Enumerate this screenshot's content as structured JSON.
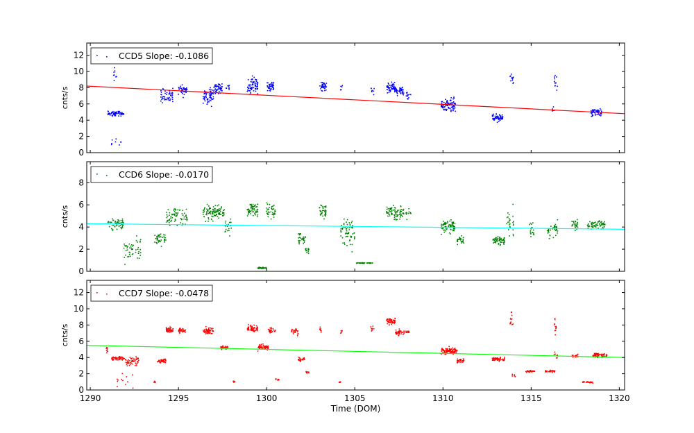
{
  "chart_data": [
    {
      "type": "scatter",
      "panel": "CCD5",
      "legend_label": "CCD5 Slope: -0.1086",
      "legend_position": "upper-left",
      "ylabel": "cnts/s",
      "xlim": [
        1289.8,
        1320.3
      ],
      "ylim": [
        0,
        13.5
      ],
      "yticks": [
        0,
        2,
        4,
        6,
        8,
        10,
        12
      ],
      "point_color": "#0000ff",
      "fit_color": "#ff0000",
      "fit_line": {
        "x": [
          1289.8,
          1320.3
        ],
        "y": [
          8.2,
          4.8
        ]
      },
      "clusters": [
        {
          "x0": 1291.0,
          "x1": 1291.9,
          "y": 4.8,
          "spread": 0.3,
          "n": 60
        },
        {
          "x0": 1291.3,
          "x1": 1291.5,
          "y": 9.5,
          "spread": 0.7,
          "n": 8
        },
        {
          "x0": 1291.2,
          "x1": 1291.8,
          "y": 1.4,
          "spread": 0.6,
          "n": 8
        },
        {
          "x0": 1294.0,
          "x1": 1294.7,
          "y": 7.0,
          "spread": 0.7,
          "n": 50
        },
        {
          "x0": 1295.0,
          "x1": 1295.5,
          "y": 7.7,
          "spread": 0.5,
          "n": 40
        },
        {
          "x0": 1296.4,
          "x1": 1297.0,
          "y": 7.0,
          "spread": 0.9,
          "n": 60
        },
        {
          "x0": 1297.0,
          "x1": 1297.5,
          "y": 7.9,
          "spread": 0.6,
          "n": 50
        },
        {
          "x0": 1297.7,
          "x1": 1297.9,
          "y": 8.0,
          "spread": 0.5,
          "n": 8
        },
        {
          "x0": 1298.9,
          "x1": 1299.5,
          "y": 8.2,
          "spread": 0.9,
          "n": 70
        },
        {
          "x0": 1300.0,
          "x1": 1300.4,
          "y": 8.1,
          "spread": 0.5,
          "n": 40
        },
        {
          "x0": 1303.0,
          "x1": 1303.4,
          "y": 8.2,
          "spread": 0.5,
          "n": 35
        },
        {
          "x0": 1304.2,
          "x1": 1304.3,
          "y": 7.8,
          "spread": 0.6,
          "n": 6
        },
        {
          "x0": 1305.9,
          "x1": 1306.1,
          "y": 7.8,
          "spread": 0.5,
          "n": 8
        },
        {
          "x0": 1306.8,
          "x1": 1307.3,
          "y": 8.0,
          "spread": 0.5,
          "n": 60
        },
        {
          "x0": 1307.3,
          "x1": 1307.8,
          "y": 7.6,
          "spread": 0.5,
          "n": 40
        },
        {
          "x0": 1307.9,
          "x1": 1308.2,
          "y": 7.2,
          "spread": 0.4,
          "n": 12
        },
        {
          "x0": 1309.9,
          "x1": 1310.7,
          "y": 5.9,
          "spread": 0.6,
          "n": 90
        },
        {
          "x0": 1312.8,
          "x1": 1313.4,
          "y": 4.3,
          "spread": 0.4,
          "n": 60
        },
        {
          "x0": 1313.8,
          "x1": 1314.0,
          "y": 9.2,
          "spread": 0.8,
          "n": 12
        },
        {
          "x0": 1316.3,
          "x1": 1316.5,
          "y": 8.8,
          "spread": 0.9,
          "n": 12
        },
        {
          "x0": 1316.2,
          "x1": 1316.4,
          "y": 5.2,
          "spread": 0.4,
          "n": 6
        },
        {
          "x0": 1318.4,
          "x1": 1319.0,
          "y": 5.0,
          "spread": 0.4,
          "n": 60
        }
      ]
    },
    {
      "type": "scatter",
      "panel": "CCD6",
      "legend_label": "CCD6 Slope: -0.0170",
      "legend_position": "upper-left",
      "ylabel": "cnts/s",
      "xlim": [
        1289.8,
        1320.3
      ],
      "ylim": [
        0,
        9.9
      ],
      "yticks": [
        0,
        2,
        4,
        6,
        8
      ],
      "point_color": "#008000",
      "fit_color": "#00ffff",
      "fit_line": {
        "x": [
          1289.8,
          1320.3
        ],
        "y": [
          4.3,
          3.8
        ]
      },
      "clusters": [
        {
          "x0": 1291.0,
          "x1": 1291.9,
          "y": 4.3,
          "spread": 0.4,
          "n": 60
        },
        {
          "x0": 1291.9,
          "x1": 1292.9,
          "y": 2.0,
          "spread": 0.9,
          "n": 50
        },
        {
          "x0": 1293.6,
          "x1": 1294.3,
          "y": 3.0,
          "spread": 0.4,
          "n": 40
        },
        {
          "x0": 1294.3,
          "x1": 1295.5,
          "y": 5.0,
          "spread": 0.7,
          "n": 70
        },
        {
          "x0": 1296.4,
          "x1": 1297.6,
          "y": 5.3,
          "spread": 0.5,
          "n": 110
        },
        {
          "x0": 1297.6,
          "x1": 1298.0,
          "y": 4.0,
          "spread": 0.6,
          "n": 20
        },
        {
          "x0": 1298.9,
          "x1": 1299.5,
          "y": 5.6,
          "spread": 0.6,
          "n": 60
        },
        {
          "x0": 1299.5,
          "x1": 1300.0,
          "y": 0.3,
          "spread": 0.05,
          "n": 40
        },
        {
          "x0": 1300.0,
          "x1": 1300.5,
          "y": 5.4,
          "spread": 0.6,
          "n": 40
        },
        {
          "x0": 1301.8,
          "x1": 1302.2,
          "y": 3.0,
          "spread": 0.4,
          "n": 30
        },
        {
          "x0": 1302.2,
          "x1": 1302.4,
          "y": 1.9,
          "spread": 0.3,
          "n": 15
        },
        {
          "x0": 1303.0,
          "x1": 1303.4,
          "y": 5.4,
          "spread": 0.5,
          "n": 35
        },
        {
          "x0": 1304.2,
          "x1": 1305.0,
          "y": 3.6,
          "spread": 1.2,
          "n": 60
        },
        {
          "x0": 1305.1,
          "x1": 1306.0,
          "y": 0.75,
          "spread": 0.03,
          "n": 40
        },
        {
          "x0": 1306.8,
          "x1": 1307.8,
          "y": 5.3,
          "spread": 0.5,
          "n": 80
        },
        {
          "x0": 1307.9,
          "x1": 1308.2,
          "y": 5.2,
          "spread": 0.4,
          "n": 12
        },
        {
          "x0": 1309.9,
          "x1": 1310.7,
          "y": 4.1,
          "spread": 0.5,
          "n": 80
        },
        {
          "x0": 1310.8,
          "x1": 1311.2,
          "y": 2.8,
          "spread": 0.3,
          "n": 30
        },
        {
          "x0": 1312.8,
          "x1": 1313.5,
          "y": 2.8,
          "spread": 0.3,
          "n": 60
        },
        {
          "x0": 1313.6,
          "x1": 1314.0,
          "y": 4.5,
          "spread": 1.0,
          "n": 25
        },
        {
          "x0": 1314.9,
          "x1": 1315.2,
          "y": 3.7,
          "spread": 0.5,
          "n": 20
        },
        {
          "x0": 1315.9,
          "x1": 1316.5,
          "y": 3.8,
          "spread": 0.6,
          "n": 40
        },
        {
          "x0": 1317.3,
          "x1": 1317.7,
          "y": 4.2,
          "spread": 0.4,
          "n": 25
        },
        {
          "x0": 1318.2,
          "x1": 1319.2,
          "y": 4.2,
          "spread": 0.3,
          "n": 70
        }
      ]
    },
    {
      "type": "scatter",
      "panel": "CCD7",
      "legend_label": "CCD7 Slope: -0.0478",
      "legend_position": "upper-left",
      "ylabel": "cnts/s",
      "xlabel": "Time (DOM)",
      "xlim": [
        1289.8,
        1320.3
      ],
      "ylim": [
        0,
        13.5
      ],
      "yticks": [
        0,
        2,
        4,
        6,
        8,
        10,
        12
      ],
      "xticks": [
        1290,
        1295,
        1300,
        1305,
        1310,
        1315,
        1320
      ],
      "point_color": "#ff0000",
      "fit_color": "#00ff00",
      "fit_line": {
        "x": [
          1289.8,
          1320.3
        ],
        "y": [
          5.5,
          4.0
        ]
      },
      "clusters": [
        {
          "x0": 1290.9,
          "x1": 1291.0,
          "y": 5.0,
          "spread": 0.3,
          "n": 8
        },
        {
          "x0": 1291.2,
          "x1": 1292.0,
          "y": 3.9,
          "spread": 0.2,
          "n": 50
        },
        {
          "x0": 1292.0,
          "x1": 1292.8,
          "y": 3.5,
          "spread": 0.4,
          "n": 50
        },
        {
          "x0": 1291.5,
          "x1": 1292.5,
          "y": 1.3,
          "spread": 0.8,
          "n": 12
        },
        {
          "x0": 1293.6,
          "x1": 1293.7,
          "y": 1.0,
          "spread": 0.1,
          "n": 6
        },
        {
          "x0": 1293.8,
          "x1": 1294.3,
          "y": 3.6,
          "spread": 0.2,
          "n": 40
        },
        {
          "x0": 1294.3,
          "x1": 1294.7,
          "y": 7.4,
          "spread": 0.3,
          "n": 40
        },
        {
          "x0": 1295.0,
          "x1": 1295.4,
          "y": 7.3,
          "spread": 0.3,
          "n": 35
        },
        {
          "x0": 1296.4,
          "x1": 1297.0,
          "y": 7.3,
          "spread": 0.3,
          "n": 60
        },
        {
          "x0": 1297.4,
          "x1": 1297.8,
          "y": 5.2,
          "spread": 0.2,
          "n": 25
        },
        {
          "x0": 1298.1,
          "x1": 1298.2,
          "y": 1.1,
          "spread": 0.1,
          "n": 6
        },
        {
          "x0": 1298.9,
          "x1": 1299.5,
          "y": 7.6,
          "spread": 0.4,
          "n": 60
        },
        {
          "x0": 1299.5,
          "x1": 1300.1,
          "y": 5.3,
          "spread": 0.3,
          "n": 50
        },
        {
          "x0": 1300.1,
          "x1": 1300.5,
          "y": 7.3,
          "spread": 0.3,
          "n": 30
        },
        {
          "x0": 1300.5,
          "x1": 1300.7,
          "y": 1.3,
          "spread": 0.1,
          "n": 8
        },
        {
          "x0": 1301.4,
          "x1": 1301.8,
          "y": 7.2,
          "spread": 0.3,
          "n": 25
        },
        {
          "x0": 1301.8,
          "x1": 1302.2,
          "y": 3.8,
          "spread": 0.2,
          "n": 25
        },
        {
          "x0": 1302.2,
          "x1": 1302.4,
          "y": 2.2,
          "spread": 0.1,
          "n": 12
        },
        {
          "x0": 1303.0,
          "x1": 1303.1,
          "y": 7.4,
          "spread": 0.3,
          "n": 8
        },
        {
          "x0": 1304.2,
          "x1": 1304.3,
          "y": 7.2,
          "spread": 0.2,
          "n": 6
        },
        {
          "x0": 1304.1,
          "x1": 1304.2,
          "y": 1.0,
          "spread": 0.1,
          "n": 6
        },
        {
          "x0": 1305.9,
          "x1": 1306.1,
          "y": 7.6,
          "spread": 0.3,
          "n": 8
        },
        {
          "x0": 1306.8,
          "x1": 1307.3,
          "y": 8.5,
          "spread": 0.3,
          "n": 50
        },
        {
          "x0": 1307.3,
          "x1": 1307.8,
          "y": 7.0,
          "spread": 0.3,
          "n": 40
        },
        {
          "x0": 1307.9,
          "x1": 1308.2,
          "y": 7.1,
          "spread": 0.2,
          "n": 12
        },
        {
          "x0": 1309.9,
          "x1": 1310.8,
          "y": 4.8,
          "spread": 0.3,
          "n": 90
        },
        {
          "x0": 1310.8,
          "x1": 1311.2,
          "y": 3.6,
          "spread": 0.2,
          "n": 30
        },
        {
          "x0": 1312.8,
          "x1": 1313.5,
          "y": 3.8,
          "spread": 0.2,
          "n": 50
        },
        {
          "x0": 1313.8,
          "x1": 1314.0,
          "y": 8.5,
          "spread": 1.2,
          "n": 12
        },
        {
          "x0": 1313.9,
          "x1": 1314.1,
          "y": 1.8,
          "spread": 0.2,
          "n": 6
        },
        {
          "x0": 1314.7,
          "x1": 1315.2,
          "y": 2.3,
          "spread": 0.1,
          "n": 30
        },
        {
          "x0": 1315.8,
          "x1": 1316.4,
          "y": 2.3,
          "spread": 0.1,
          "n": 35
        },
        {
          "x0": 1316.3,
          "x1": 1316.5,
          "y": 7.8,
          "spread": 1.2,
          "n": 12
        },
        {
          "x0": 1316.3,
          "x1": 1316.5,
          "y": 4.3,
          "spread": 0.3,
          "n": 8
        },
        {
          "x0": 1317.3,
          "x1": 1317.7,
          "y": 4.2,
          "spread": 0.2,
          "n": 20
        },
        {
          "x0": 1317.9,
          "x1": 1318.5,
          "y": 0.95,
          "spread": 0.08,
          "n": 30
        },
        {
          "x0": 1318.5,
          "x1": 1319.3,
          "y": 4.3,
          "spread": 0.2,
          "n": 60
        }
      ]
    }
  ]
}
